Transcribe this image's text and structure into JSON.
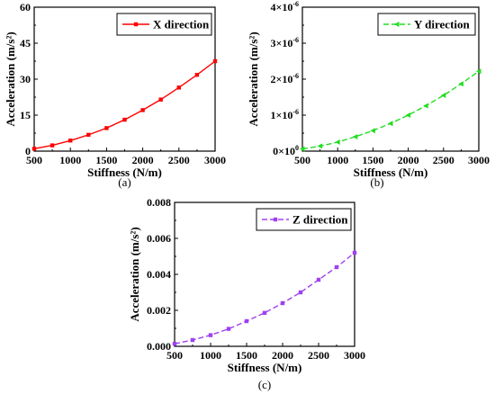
{
  "chart_data": [
    {
      "type": "line",
      "panel_label": "(a)",
      "xlabel": "Stiffness (N/m)",
      "ylabel": "Acceleration (m/s²)",
      "xlim": [
        500,
        3000
      ],
      "ylim": [
        0,
        60
      ],
      "xticks": [
        500,
        1000,
        1500,
        2000,
        2500,
        3000
      ],
      "xtick_labels": [
        "500",
        "1000",
        "1500",
        "2000",
        "2500",
        "3000"
      ],
      "yticks": [
        0,
        15,
        30,
        45,
        60
      ],
      "ytick_labels": [
        "0",
        "15",
        "30",
        "45",
        "60"
      ],
      "legend_position": "top-right",
      "grid": false,
      "series": [
        {
          "name": "X direction",
          "color": "#ff0000",
          "line_style": "solid",
          "marker": "square",
          "x": [
            500,
            750,
            1000,
            1250,
            1500,
            1750,
            2000,
            2250,
            2500,
            2750,
            3000
          ],
          "y": [
            1.0,
            2.4,
            4.4,
            6.8,
            9.6,
            13.1,
            17.1,
            21.5,
            26.5,
            31.8,
            37.5
          ]
        }
      ]
    },
    {
      "type": "line",
      "panel_label": "(b)",
      "xlabel": "Stiffness (N/m)",
      "ylabel": "Acceleration (m/s²)",
      "xlim": [
        500,
        3000
      ],
      "ylim": [
        0,
        4e-06
      ],
      "xticks": [
        500,
        1000,
        1500,
        2000,
        2500,
        3000
      ],
      "xtick_labels": [
        "500",
        "1000",
        "1500",
        "2000",
        "2500",
        "3000"
      ],
      "yticks": [
        0,
        1e-06,
        2e-06,
        3e-06,
        4e-06
      ],
      "ytick_mantissas": [
        "0",
        "1",
        "2",
        "3",
        "4"
      ],
      "ytick_exponents": [
        "0",
        "-6",
        "-6",
        "-6",
        "-6"
      ],
      "ytick_base": "×10",
      "legend_position": "top-right",
      "grid": false,
      "series": [
        {
          "name": "Y direction",
          "color": "#22dd22",
          "line_style": "dashed",
          "marker": "triangle-left",
          "x": [
            500,
            750,
            1000,
            1250,
            1500,
            1750,
            2000,
            2250,
            2500,
            2750,
            3000
          ],
          "y": [
            6e-08,
            1.4e-07,
            2.5e-07,
            4e-07,
            5.7e-07,
            7.7e-07,
            1e-06,
            1.26e-06,
            1.55e-06,
            1.87e-06,
            2.22e-06
          ]
        }
      ]
    },
    {
      "type": "line",
      "panel_label": "(c)",
      "xlabel": "Stiffness (N/m)",
      "ylabel": "Acceleration (m/s²)",
      "xlim": [
        500,
        3000
      ],
      "ylim": [
        0,
        0.008
      ],
      "xticks": [
        500,
        1000,
        1500,
        2000,
        2500,
        3000
      ],
      "xtick_labels": [
        "500",
        "1000",
        "1500",
        "2000",
        "2500",
        "3000"
      ],
      "yticks": [
        0,
        0.002,
        0.004,
        0.006,
        0.008
      ],
      "ytick_labels": [
        "0.000",
        "0.002",
        "0.004",
        "0.006",
        "0.008"
      ],
      "legend_position": "top-right",
      "grid": false,
      "series": [
        {
          "name": "Z direction",
          "color": "#a040f0",
          "line_style": "dashed",
          "marker": "square",
          "x": [
            500,
            750,
            1000,
            1250,
            1500,
            1750,
            2000,
            2250,
            2500,
            2750,
            3000
          ],
          "y": [
            0.00014,
            0.00035,
            0.00062,
            0.00097,
            0.0014,
            0.00186,
            0.0024,
            0.003,
            0.0037,
            0.0044,
            0.0052
          ]
        }
      ]
    }
  ]
}
